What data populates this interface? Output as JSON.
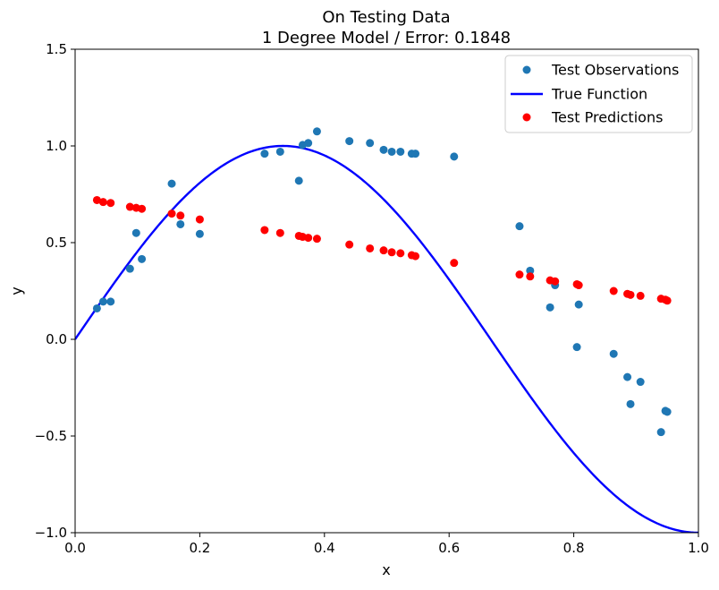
{
  "chart_data": {
    "type": "scatter",
    "title": "On Testing Data",
    "subtitle": "1 Degree Model / Error: 0.1848",
    "xlabel": "x",
    "ylabel": "y",
    "xlim": [
      0.0,
      1.0
    ],
    "ylim": [
      -1.0,
      1.5
    ],
    "x_ticks": [
      "0.0",
      "0.2",
      "0.4",
      "0.6",
      "0.8",
      "1.0"
    ],
    "y_ticks": [
      "−1.0",
      "−0.5",
      "0.0",
      "0.5",
      "1.0",
      "1.5"
    ],
    "grid": false,
    "legend_position": "top-right",
    "series": [
      {
        "name": "Test Observations",
        "kind": "scatter",
        "color": "#1f77b4",
        "points": [
          [
            0.035,
            0.16
          ],
          [
            0.045,
            0.195
          ],
          [
            0.057,
            0.195
          ],
          [
            0.088,
            0.365
          ],
          [
            0.098,
            0.55
          ],
          [
            0.107,
            0.415
          ],
          [
            0.155,
            0.805
          ],
          [
            0.169,
            0.595
          ],
          [
            0.2,
            0.545
          ],
          [
            0.304,
            0.96
          ],
          [
            0.329,
            0.97
          ],
          [
            0.359,
            0.82
          ],
          [
            0.365,
            1.005
          ],
          [
            0.374,
            1.015
          ],
          [
            0.388,
            1.075
          ],
          [
            0.44,
            1.025
          ],
          [
            0.473,
            1.015
          ],
          [
            0.495,
            0.98
          ],
          [
            0.508,
            0.97
          ],
          [
            0.522,
            0.97
          ],
          [
            0.54,
            0.96
          ],
          [
            0.546,
            0.96
          ],
          [
            0.608,
            0.945
          ],
          [
            0.713,
            0.585
          ],
          [
            0.73,
            0.355
          ],
          [
            0.762,
            0.165
          ],
          [
            0.77,
            0.28
          ],
          [
            0.805,
            -0.04
          ],
          [
            0.808,
            0.18
          ],
          [
            0.864,
            -0.075
          ],
          [
            0.886,
            -0.195
          ],
          [
            0.891,
            -0.335
          ],
          [
            0.907,
            -0.22
          ],
          [
            0.94,
            -0.48
          ],
          [
            0.947,
            -0.37
          ],
          [
            0.95,
            -0.375
          ]
        ]
      },
      {
        "name": "True Function",
        "kind": "line",
        "color": "#0000ff",
        "function": "cos(1.5*pi*x - pi/2)"
      },
      {
        "name": "Test Predictions",
        "kind": "scatter",
        "color": "#ff0000",
        "points": [
          [
            0.035,
            0.72
          ],
          [
            0.045,
            0.71
          ],
          [
            0.057,
            0.705
          ],
          [
            0.088,
            0.685
          ],
          [
            0.098,
            0.68
          ],
          [
            0.107,
            0.675
          ],
          [
            0.155,
            0.65
          ],
          [
            0.169,
            0.64
          ],
          [
            0.2,
            0.62
          ],
          [
            0.304,
            0.565
          ],
          [
            0.329,
            0.55
          ],
          [
            0.359,
            0.535
          ],
          [
            0.365,
            0.53
          ],
          [
            0.374,
            0.525
          ],
          [
            0.388,
            0.52
          ],
          [
            0.44,
            0.49
          ],
          [
            0.473,
            0.47
          ],
          [
            0.495,
            0.46
          ],
          [
            0.508,
            0.45
          ],
          [
            0.522,
            0.445
          ],
          [
            0.54,
            0.435
          ],
          [
            0.546,
            0.43
          ],
          [
            0.608,
            0.395
          ],
          [
            0.713,
            0.335
          ],
          [
            0.73,
            0.325
          ],
          [
            0.762,
            0.305
          ],
          [
            0.77,
            0.3
          ],
          [
            0.805,
            0.285
          ],
          [
            0.808,
            0.28
          ],
          [
            0.864,
            0.25
          ],
          [
            0.886,
            0.235
          ],
          [
            0.891,
            0.23
          ],
          [
            0.907,
            0.225
          ],
          [
            0.94,
            0.21
          ],
          [
            0.947,
            0.205
          ],
          [
            0.95,
            0.2
          ]
        ]
      }
    ]
  }
}
